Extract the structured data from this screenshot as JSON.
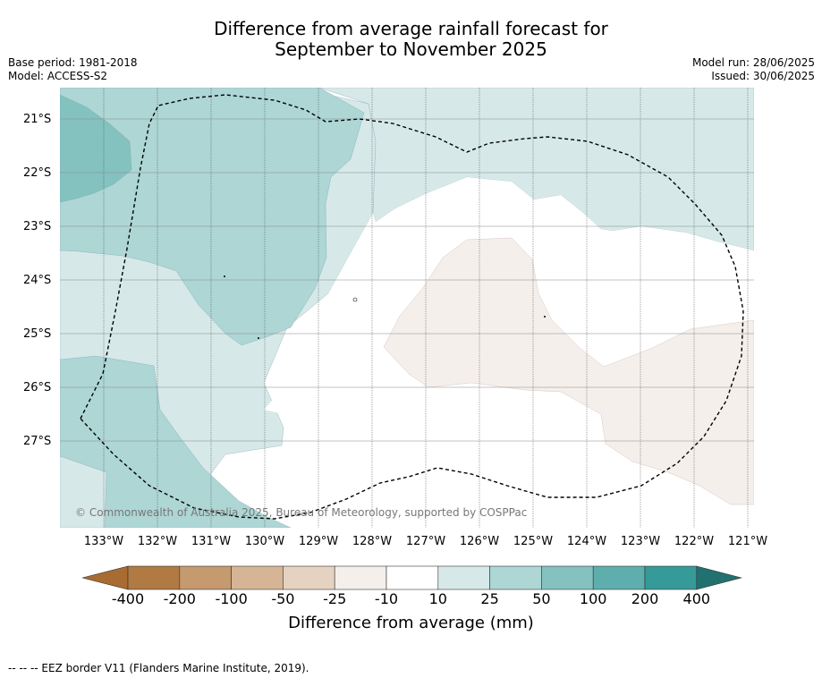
{
  "title": {
    "line1": "Difference from average rainfall forecast for",
    "line2": "September to November 2025"
  },
  "meta": {
    "base_period": "Base period: 1981-2018",
    "model": "Model: ACCESS-S2",
    "model_run": "Model run: 28/06/2025",
    "issued": "Issued: 30/06/2025"
  },
  "lat_labels": [
    "21°S",
    "22°S",
    "23°S",
    "24°S",
    "25°S",
    "26°S",
    "27°S"
  ],
  "lon_labels": [
    "133°W",
    "132°W",
    "131°W",
    "130°W",
    "129°W",
    "128°W",
    "127°W",
    "126°W",
    "125°W",
    "124°W",
    "123°W",
    "122°W",
    "121°W"
  ],
  "colorbar": {
    "ticks": [
      "-400",
      "-200",
      "-100",
      "-50",
      "-25",
      "-10",
      "10",
      "25",
      "50",
      "100",
      "200",
      "400"
    ],
    "colors": [
      "#a86b32",
      "#b07a42",
      "#c49a6e",
      "#d6b596",
      "#e5d2c0",
      "#f5efeb",
      "#ffffff",
      "#d6e9e8",
      "#add6d5",
      "#84c2c0",
      "#5eaead",
      "#369a98",
      "#207170"
    ],
    "title": "Difference from average (mm)"
  },
  "copyright": "© Commonwealth of Australia 2025, Bureau of Meteorology, supported by COSPPac",
  "footnote": "--  --  -- EEZ border V11 (Flanders Marine Institute, 2019).",
  "colors": {
    "category_10_25": "#d6e9e8",
    "category_25_50": "#add6d5",
    "category_50_100": "#84c2c0",
    "category_neg10_neg25": "#f5efeb"
  }
}
